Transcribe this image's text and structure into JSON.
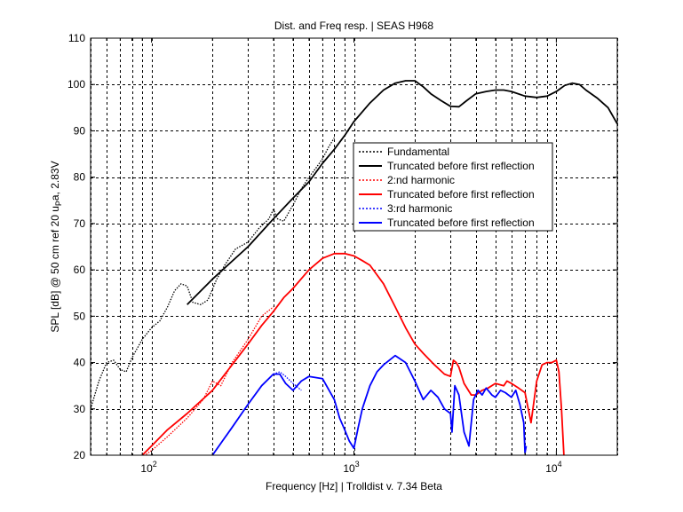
{
  "chart_data": {
    "type": "line",
    "title": "Dist. and Freq resp.  | SEAS H968",
    "xlabel": "Frequency [Hz] | Trolldist v. 7.34 Beta",
    "ylabel": "SPL [dB] @ 50 cm ref 20 uPa, 2.83V",
    "x_scale": "log",
    "xlim": [
      50,
      20000
    ],
    "ylim": [
      20,
      110
    ],
    "grid": true,
    "legend_position": "right-middle",
    "x_ticks": [
      {
        "value": 100,
        "base": "10",
        "exp": "2"
      },
      {
        "value": 1000,
        "base": "10",
        "exp": "3"
      },
      {
        "value": 10000,
        "base": "10",
        "exp": "4"
      }
    ],
    "y_ticks": [
      20,
      30,
      40,
      50,
      60,
      70,
      80,
      90,
      100,
      110
    ],
    "series": [
      {
        "name": "Fundamental",
        "color": "#000000",
        "style": "dotted",
        "x": [
          50,
          55,
          60,
          65,
          70,
          75,
          80,
          90,
          100,
          110,
          120,
          130,
          140,
          150,
          160,
          175,
          190,
          210,
          230,
          260,
          300,
          340,
          380,
          400,
          420,
          450,
          500,
          550,
          600,
          650,
          700,
          750,
          800
        ],
        "y": [
          30,
          36,
          40,
          40.5,
          38.5,
          38,
          41,
          45,
          47.5,
          49,
          52,
          55.5,
          57,
          56.5,
          53,
          52.5,
          53.5,
          58,
          61,
          64.5,
          66,
          69,
          71,
          73,
          71,
          70.5,
          74,
          77.5,
          80,
          82,
          84,
          86.5,
          88.5
        ]
      },
      {
        "name": "Truncated before first reflection",
        "color": "#000000",
        "style": "solid",
        "x": [
          150,
          200,
          300,
          400,
          500,
          600,
          700,
          800,
          900,
          1000,
          1200,
          1400,
          1600,
          1800,
          2000,
          2200,
          2400,
          2700,
          3000,
          3300,
          3600,
          4000,
          4500,
          5000,
          5500,
          6000,
          7000,
          8000,
          9000,
          10000,
          11000,
          12000,
          13000,
          14000,
          16000,
          18000,
          20000
        ],
        "y": [
          52.5,
          58,
          65,
          71,
          75.5,
          79,
          83,
          86,
          89,
          92,
          96,
          98.8,
          100.3,
          100.8,
          100.8,
          99.5,
          98,
          96.5,
          95.3,
          95.2,
          96.5,
          98,
          98.5,
          98.8,
          98.8,
          98.5,
          97.5,
          97.2,
          97.5,
          98.5,
          99.8,
          100.3,
          100,
          98.8,
          97,
          95,
          91.5
        ]
      },
      {
        "name": "2:nd harmonic",
        "color": "#ff0000",
        "style": "dotted",
        "x": [
          55,
          60,
          65,
          70,
          80,
          100,
          120,
          150,
          180,
          200,
          220,
          250,
          300,
          350,
          400
        ],
        "y": [
          18,
          19,
          18.5,
          17,
          18,
          21,
          24,
          28,
          32,
          36,
          35,
          40,
          45,
          50,
          52
        ]
      },
      {
        "name": "Truncated before first reflection",
        "color": "#ff0000",
        "style": "solid",
        "x": [
          90,
          100,
          120,
          150,
          200,
          250,
          300,
          350,
          400,
          450,
          500,
          600,
          700,
          800,
          900,
          1000,
          1100,
          1200,
          1400,
          1600,
          1800,
          2000,
          2200,
          2500,
          2800,
          3000,
          3100,
          3200,
          3300,
          3500,
          3800,
          4000,
          4300,
          4600,
          5000,
          5500,
          5700,
          6000,
          6500,
          7000,
          7500,
          8000,
          8500,
          9000,
          9500,
          10000,
          10300,
          10600,
          10900
        ],
        "y": [
          20,
          22,
          25.5,
          29,
          34,
          39.5,
          44,
          48,
          51,
          54,
          56,
          60,
          62.5,
          63.5,
          63.5,
          63,
          62,
          61,
          57,
          52,
          47.5,
          44,
          42,
          39.5,
          37.5,
          37,
          40.5,
          40,
          39,
          35.5,
          33,
          33,
          34,
          34.5,
          35.5,
          35,
          36,
          35.5,
          34.5,
          33.5,
          27,
          36,
          39.5,
          40,
          40,
          40.5,
          38,
          30,
          20
        ]
      },
      {
        "name": "3:rd harmonic",
        "color": "#0000ff",
        "style": "dotted",
        "x": [
          400,
          430,
          460,
          500,
          550
        ],
        "y": [
          37.5,
          38,
          37,
          35.5,
          34
        ]
      },
      {
        "name": "Truncated before first reflection",
        "color": "#0000ff",
        "style": "solid",
        "x": [
          200,
          250,
          300,
          350,
          400,
          430,
          460,
          500,
          550,
          600,
          700,
          800,
          850,
          900,
          950,
          1000,
          1050,
          1100,
          1200,
          1300,
          1400,
          1600,
          1800,
          2000,
          2200,
          2400,
          2600,
          2800,
          3000,
          3050,
          3150,
          3300,
          3500,
          3700,
          3900,
          4100,
          4300,
          4500,
          4800,
          5000,
          5300,
          5600,
          6000,
          6300,
          6600,
          6900,
          7000,
          7100
        ],
        "y": [
          20,
          26,
          31,
          35,
          37.5,
          37.5,
          35.5,
          34,
          36,
          37,
          36.5,
          32,
          28,
          25.5,
          23,
          21.5,
          26,
          30,
          35,
          38,
          39.5,
          41.5,
          40,
          36,
          32,
          34,
          32.5,
          30,
          29,
          25,
          35,
          33,
          25,
          22,
          32,
          34,
          33,
          34.5,
          33,
          32.5,
          34,
          33.5,
          32.5,
          34,
          31,
          27,
          20.5,
          22
        ]
      }
    ]
  }
}
